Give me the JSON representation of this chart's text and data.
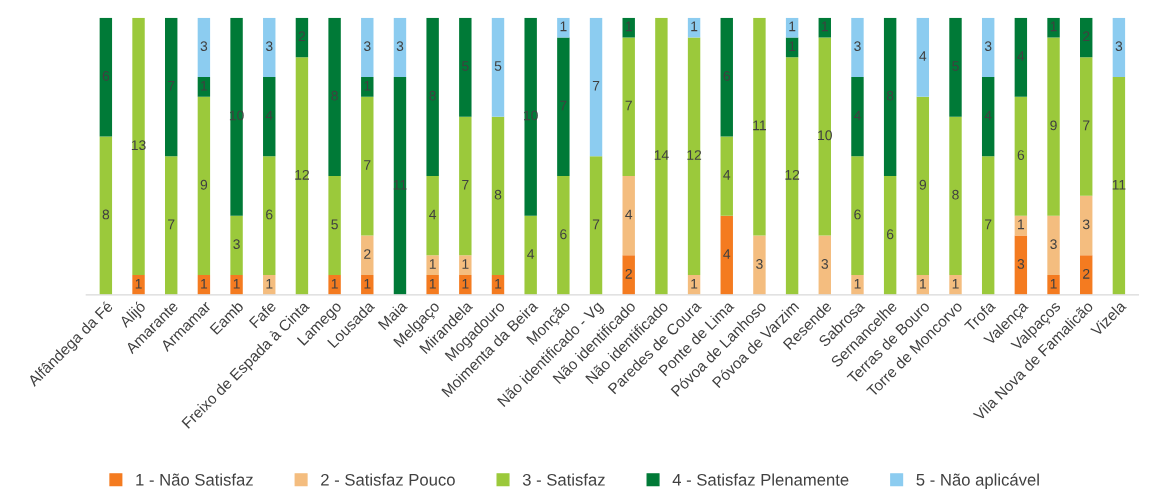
{
  "chart_data": {
    "type": "bar",
    "stacked": true,
    "data_labels": true,
    "legend": "bottom",
    "grid": false,
    "categories": [
      "Alfândega da Fé",
      "Alijó",
      "Amarante",
      "Armamar",
      "Eamb",
      "Fafe",
      "Freixo de Espada à Cinta",
      "Lamego",
      "Lousada",
      "Maia",
      "Melgaço",
      "Mirandela",
      "Mogadouro",
      "Moimenta da Beira",
      "Monção",
      "Não identificado - Vg",
      "Não identificado",
      "Não identificado",
      "Paredes de Coura",
      "Ponte de Lima",
      "Póvoa de Lanhoso",
      "Póvoa de Varzim",
      "Resende",
      "Sabrosa",
      "Sernancelhe",
      "Terras de Bouro",
      "Torre de Moncorvo",
      "Trofa",
      "Valença",
      "Valpaços",
      "Vila Nova de Famalicão",
      "Vizela"
    ],
    "series": [
      {
        "name": "1 - Não Satisfaz",
        "color": "#f47b20",
        "values": [
          null,
          1,
          null,
          1,
          1,
          null,
          null,
          1,
          1,
          null,
          1,
          1,
          1,
          null,
          null,
          null,
          2,
          null,
          null,
          4,
          null,
          null,
          null,
          null,
          null,
          null,
          null,
          null,
          3,
          1,
          2,
          null
        ]
      },
      {
        "name": "2 - Satisfaz Pouco",
        "color": "#f4bd7f",
        "values": [
          null,
          null,
          null,
          null,
          null,
          1,
          null,
          null,
          2,
          null,
          1,
          1,
          null,
          null,
          null,
          null,
          4,
          null,
          1,
          null,
          3,
          null,
          3,
          1,
          null,
          1,
          1,
          null,
          1,
          3,
          3,
          null
        ]
      },
      {
        "name": "3 - Satisfaz",
        "color": "#9bc93b",
        "values": [
          8,
          13,
          7,
          9,
          3,
          6,
          12,
          5,
          7,
          null,
          4,
          7,
          8,
          4,
          6,
          7,
          7,
          14,
          12,
          4,
          11,
          12,
          10,
          6,
          6,
          9,
          8,
          7,
          6,
          9,
          7,
          11
        ]
      },
      {
        "name": "4 - Satisfaz Plenamente",
        "color": "#007a37",
        "values": [
          6,
          null,
          7,
          1,
          10,
          4,
          2,
          8,
          1,
          11,
          8,
          5,
          null,
          10,
          7,
          null,
          1,
          null,
          null,
          6,
          null,
          1,
          1,
          4,
          8,
          null,
          5,
          4,
          4,
          1,
          2,
          null
        ]
      },
      {
        "name": "5 - Não aplicável",
        "color": "#8cccf0",
        "values": [
          null,
          null,
          null,
          3,
          null,
          3,
          null,
          null,
          3,
          3,
          null,
          null,
          5,
          null,
          1,
          7,
          null,
          null,
          1,
          null,
          null,
          1,
          null,
          3,
          null,
          4,
          null,
          3,
          null,
          null,
          null,
          3
        ]
      }
    ]
  }
}
